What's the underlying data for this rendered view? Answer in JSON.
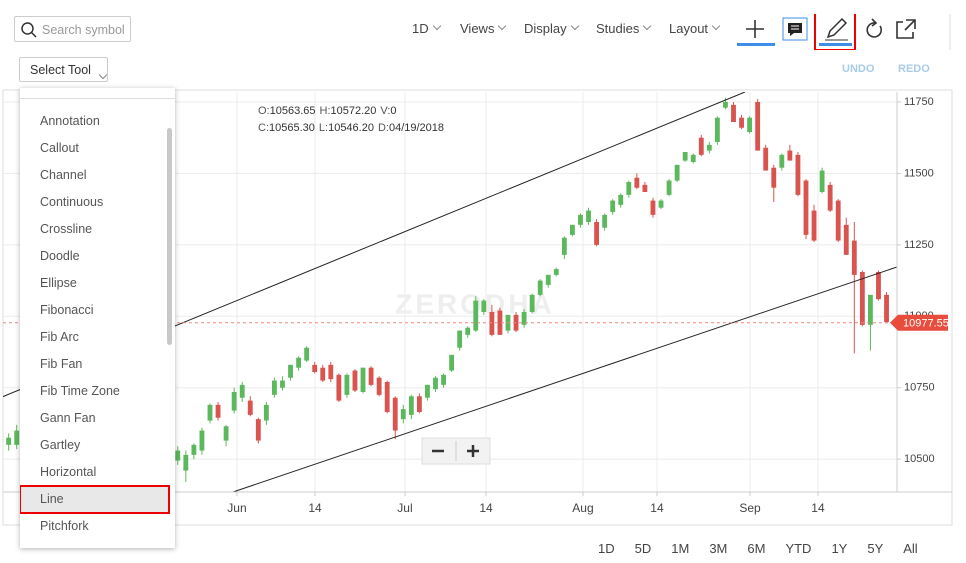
{
  "toolbar": {
    "search_placeholder": "Search symbol",
    "interval": "1D",
    "menus": [
      "Views",
      "Display",
      "Studies",
      "Layout"
    ]
  },
  "tool_select": "Select Tool",
  "undo": "UNDO",
  "redo": "REDO",
  "tools": {
    "items": [
      "Annotation",
      "Callout",
      "Channel",
      "Continuous",
      "Crossline",
      "Doodle",
      "Ellipse",
      "Fibonacci",
      "Fib Arc",
      "Fib Fan",
      "Fib Time Zone",
      "Gann Fan",
      "Gartley",
      "Horizontal",
      "Line",
      "Pitchfork"
    ],
    "selected_index": 14
  },
  "status": [
    [
      {
        "label": "O:",
        "value": "10563.65"
      },
      {
        "label": "H:",
        "value": "10572.20"
      },
      {
        "label": "V:",
        "value": "0"
      }
    ],
    [
      {
        "label": "C:",
        "value": "10565.30"
      },
      {
        "label": "L:",
        "value": "10546.20"
      },
      {
        "label": "D:",
        "value": "04/19/2018"
      }
    ]
  ],
  "ranges": [
    "1D",
    "5D",
    "1M",
    "3M",
    "6M",
    "YTD",
    "1Y",
    "5Y",
    "All"
  ],
  "chart_data": {
    "type": "candlestick",
    "watermark": "ZERODHA",
    "grid": true,
    "up_color": "#5cb85c",
    "down_color": "#d9534f",
    "x": [
      0,
      1,
      21,
      22,
      23,
      24,
      25,
      26,
      27,
      28,
      29,
      30,
      31,
      32,
      33,
      34,
      35,
      36,
      37,
      38,
      39,
      40,
      41,
      42,
      43,
      44,
      45,
      46,
      47,
      48,
      49,
      50,
      51,
      52,
      53,
      54,
      55,
      56,
      57,
      58,
      59,
      60,
      61,
      62,
      63,
      64,
      65,
      66,
      67,
      68,
      69,
      70,
      71,
      72,
      73,
      74,
      75,
      76,
      77,
      78,
      79,
      80,
      81,
      82,
      83,
      84,
      85,
      86,
      87,
      88,
      89,
      90,
      91,
      92,
      93,
      94,
      95,
      96,
      97,
      98,
      99,
      100,
      101,
      102,
      103,
      104,
      105,
      106,
      107,
      108,
      109
    ],
    "open": [
      10550,
      10550,
      10495,
      10460,
      10515,
      10530,
      10635,
      10690,
      10565,
      10670,
      10715,
      10705,
      10640,
      10635,
      10725,
      10750,
      10785,
      10820,
      10845,
      10830,
      10820,
      10830,
      10795,
      10725,
      10810,
      10735,
      10820,
      10785,
      10770,
      10715,
      10640,
      10655,
      10720,
      10715,
      10745,
      10760,
      10810,
      10890,
      10935,
      10950,
      11015,
      11015,
      11020,
      10950,
      11005,
      10970,
      11015,
      11075,
      11110,
      11145,
      11215,
      11285,
      11320,
      11330,
      11330,
      11310,
      11365,
      11390,
      11425,
      11485,
      11460,
      11405,
      11380,
      11425,
      11475,
      11545,
      11540,
      11625,
      11580,
      11610,
      11730,
      11740,
      11695,
      11645,
      11750,
      11590,
      11520,
      11520,
      11580,
      11565,
      11475,
      11370,
      11435,
      11460,
      11405,
      11320,
      11265,
      11155,
      10970,
      11155,
      11075
    ],
    "high": [
      10590,
      10620,
      10545,
      10530,
      10555,
      10610,
      10695,
      10700,
      10620,
      10750,
      10770,
      10720,
      10645,
      10700,
      10785,
      10790,
      10830,
      10860,
      10895,
      10840,
      10830,
      10840,
      10800,
      10800,
      10815,
      10820,
      10825,
      10790,
      10775,
      10720,
      10690,
      10725,
      10730,
      10760,
      10790,
      10800,
      10865,
      10950,
      10965,
      11070,
      11060,
      11040,
      11030,
      11005,
      11015,
      11025,
      11080,
      11130,
      11145,
      11170,
      11280,
      11320,
      11360,
      11380,
      11340,
      11360,
      11410,
      11430,
      11475,
      11500,
      11470,
      11415,
      11410,
      11480,
      11530,
      11575,
      11570,
      11635,
      11610,
      11700,
      11765,
      11750,
      11705,
      11700,
      11760,
      11600,
      11530,
      11570,
      11600,
      11575,
      11480,
      11390,
      11520,
      11470,
      11410,
      11345,
      11330,
      11160,
      11075,
      11160,
      11085
    ],
    "low": [
      10530,
      10535,
      10480,
      10420,
      10500,
      10515,
      10625,
      10635,
      10545,
      10660,
      10700,
      10650,
      10555,
      10620,
      10715,
      10740,
      10775,
      10810,
      10840,
      10800,
      10770,
      10770,
      10700,
      10715,
      10735,
      10730,
      10755,
      10720,
      10660,
      10570,
      10625,
      10640,
      10660,
      10705,
      10735,
      10750,
      10805,
      10880,
      10925,
      10945,
      11005,
      10930,
      10935,
      10940,
      10945,
      10960,
      11010,
      11070,
      11100,
      11140,
      11200,
      11280,
      11310,
      11320,
      11245,
      11300,
      11355,
      11380,
      11415,
      11445,
      11435,
      11345,
      11375,
      11420,
      11470,
      11540,
      11535,
      11560,
      11570,
      11600,
      11725,
      11680,
      11655,
      11640,
      11580,
      11510,
      11400,
      11510,
      11545,
      11420,
      11270,
      11260,
      11430,
      11365,
      11260,
      11215,
      10870,
      10965,
      10880,
      11055,
      10975
    ],
    "close": [
      10575,
      10600,
      10530,
      10515,
      10550,
      10600,
      10690,
      10645,
      10615,
      10735,
      10760,
      10655,
      10565,
      10690,
      10775,
      10775,
      10830,
      10855,
      10890,
      10805,
      10775,
      10780,
      10705,
      10795,
      10740,
      10820,
      10760,
      10725,
      10665,
      10600,
      10675,
      10720,
      10665,
      10760,
      10785,
      10795,
      10865,
      10950,
      10960,
      11055,
      11055,
      10935,
      10935,
      11005,
      10950,
      11015,
      11075,
      11125,
      11145,
      11165,
      11275,
      11320,
      11355,
      11370,
      11250,
      11355,
      11405,
      11425,
      11470,
      11450,
      11435,
      11355,
      11405,
      11475,
      11530,
      11575,
      11565,
      11565,
      11600,
      11695,
      11750,
      11680,
      11660,
      11695,
      11580,
      11510,
      11450,
      11565,
      11545,
      11425,
      11285,
      11265,
      11510,
      11370,
      11265,
      11215,
      11145,
      10970,
      11075,
      11060,
      10980
    ],
    "xlim": [
      -0.7,
      110.3
    ],
    "xticks": [
      {
        "value": 28.35,
        "label": "Jun"
      },
      {
        "value": 38.04,
        "label": "14"
      },
      {
        "value": 49.21,
        "label": "Jul"
      },
      {
        "value": 59.27,
        "label": "14"
      },
      {
        "value": 71.31,
        "label": "Aug"
      },
      {
        "value": 80.5,
        "label": "14"
      },
      {
        "value": 92.05,
        "label": "Sep"
      },
      {
        "value": 100.49,
        "label": "14"
      }
    ],
    "ylim": [
      10385,
      11785
    ],
    "yticks": [
      10500,
      10750,
      11000,
      11250,
      11500,
      11750
    ],
    "last_price": 10977.55
  }
}
